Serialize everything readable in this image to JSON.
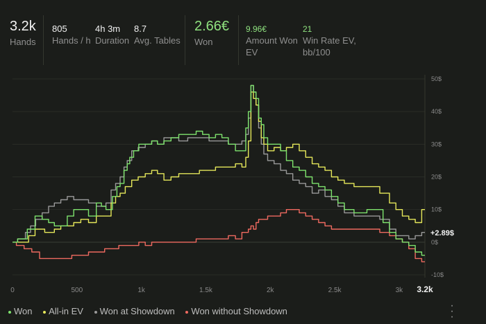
{
  "stats": {
    "hands": {
      "value": "3.2k",
      "label": "Hands"
    },
    "hands_per_hour": {
      "value": "805",
      "label": "Hands / h"
    },
    "duration": {
      "value": "4h 3m",
      "label": "Duration"
    },
    "avg_tables": {
      "value": "8.7",
      "label": "Avg. Tables"
    },
    "won": {
      "value": "2.66€",
      "label": "Won"
    },
    "amount_won_ev": {
      "value": "9.96€",
      "label_line1": "Amount Won",
      "label_line2": "EV"
    },
    "win_rate_ev": {
      "value": "21",
      "label_line1": "Win Rate EV,",
      "label_line2": "bb/100"
    }
  },
  "colors": {
    "won": "#7ee36d",
    "all_in_ev": "#e6e85a",
    "showdown": "#9a9a9a",
    "without_showdown": "#f06a60",
    "background": "#1b1d1a"
  },
  "chart_data": {
    "type": "line",
    "x_ticks": [
      "0",
      "500",
      "1k",
      "1.5k",
      "2k",
      "2.5k",
      "3k",
      "3.2k"
    ],
    "x_tick_values": [
      0,
      500,
      1000,
      1500,
      2000,
      2500,
      3000,
      3200
    ],
    "y_ticks": [
      "50$",
      "40$",
      "30$",
      "20$",
      "10$",
      "0$",
      "-10$"
    ],
    "y_tick_values": [
      50,
      40,
      30,
      20,
      10,
      0,
      -10
    ],
    "xlim": [
      0,
      3200
    ],
    "ylim": [
      -10,
      50
    ],
    "end_label": "+2.89$",
    "series": [
      {
        "name": "Won",
        "key": "won",
        "points": [
          [
            0,
            0
          ],
          [
            80,
            1
          ],
          [
            150,
            4
          ],
          [
            200,
            8
          ],
          [
            260,
            7
          ],
          [
            300,
            6
          ],
          [
            350,
            5
          ],
          [
            400,
            5
          ],
          [
            450,
            8
          ],
          [
            500,
            10
          ],
          [
            560,
            10
          ],
          [
            620,
            8
          ],
          [
            680,
            12
          ],
          [
            700,
            11
          ],
          [
            750,
            10
          ],
          [
            800,
            14
          ],
          [
            820,
            17
          ],
          [
            850,
            18
          ],
          [
            880,
            22
          ],
          [
            900,
            24
          ],
          [
            920,
            26
          ],
          [
            960,
            28
          ],
          [
            1000,
            30
          ],
          [
            1060,
            30
          ],
          [
            1100,
            31
          ],
          [
            1150,
            30
          ],
          [
            1200,
            31
          ],
          [
            1260,
            32
          ],
          [
            1320,
            33
          ],
          [
            1400,
            33
          ],
          [
            1450,
            34
          ],
          [
            1500,
            33
          ],
          [
            1550,
            32
          ],
          [
            1600,
            33
          ],
          [
            1650,
            32
          ],
          [
            1700,
            30
          ],
          [
            1760,
            28
          ],
          [
            1800,
            28
          ],
          [
            1820,
            35
          ],
          [
            1840,
            40
          ],
          [
            1860,
            48
          ],
          [
            1880,
            46
          ],
          [
            1900,
            44
          ],
          [
            1920,
            38
          ],
          [
            1940,
            36
          ],
          [
            1960,
            32
          ],
          [
            2000,
            30
          ],
          [
            2060,
            30
          ],
          [
            2100,
            28
          ],
          [
            2150,
            25
          ],
          [
            2200,
            23
          ],
          [
            2250,
            22
          ],
          [
            2300,
            20
          ],
          [
            2350,
            18
          ],
          [
            2400,
            17
          ],
          [
            2450,
            16
          ],
          [
            2500,
            14
          ],
          [
            2550,
            12
          ],
          [
            2600,
            10
          ],
          [
            2700,
            9
          ],
          [
            2800,
            10
          ],
          [
            2850,
            10
          ],
          [
            2900,
            6
          ],
          [
            2950,
            3
          ],
          [
            3000,
            1
          ],
          [
            3050,
            0
          ],
          [
            3100,
            -1
          ],
          [
            3150,
            -3
          ],
          [
            3200,
            -4
          ]
        ]
      },
      {
        "name": "All-in EV",
        "key": "all_in_ev",
        "points": [
          [
            0,
            0
          ],
          [
            100,
            0
          ],
          [
            150,
            2
          ],
          [
            200,
            4
          ],
          [
            300,
            3
          ],
          [
            350,
            4
          ],
          [
            400,
            5
          ],
          [
            450,
            5
          ],
          [
            500,
            6
          ],
          [
            560,
            7
          ],
          [
            620,
            6
          ],
          [
            680,
            8
          ],
          [
            750,
            8
          ],
          [
            780,
            12
          ],
          [
            820,
            14
          ],
          [
            850,
            15
          ],
          [
            900,
            17
          ],
          [
            950,
            19
          ],
          [
            1000,
            20
          ],
          [
            1060,
            21
          ],
          [
            1100,
            22
          ],
          [
            1150,
            21
          ],
          [
            1200,
            19
          ],
          [
            1260,
            20
          ],
          [
            1320,
            21
          ],
          [
            1400,
            21
          ],
          [
            1500,
            22
          ],
          [
            1550,
            22
          ],
          [
            1600,
            23
          ],
          [
            1650,
            23
          ],
          [
            1700,
            23
          ],
          [
            1760,
            24
          ],
          [
            1800,
            23
          ],
          [
            1820,
            26
          ],
          [
            1840,
            31
          ],
          [
            1860,
            46
          ],
          [
            1880,
            44
          ],
          [
            1900,
            42
          ],
          [
            1920,
            37
          ],
          [
            1940,
            32
          ],
          [
            1960,
            30
          ],
          [
            2000,
            28
          ],
          [
            2060,
            29
          ],
          [
            2100,
            28
          ],
          [
            2150,
            29
          ],
          [
            2200,
            30
          ],
          [
            2250,
            28
          ],
          [
            2300,
            26
          ],
          [
            2350,
            24
          ],
          [
            2400,
            23
          ],
          [
            2450,
            22
          ],
          [
            2500,
            20
          ],
          [
            2550,
            19
          ],
          [
            2600,
            18
          ],
          [
            2700,
            17
          ],
          [
            2800,
            17
          ],
          [
            2900,
            15
          ],
          [
            2950,
            12
          ],
          [
            3000,
            10
          ],
          [
            3050,
            8
          ],
          [
            3100,
            7
          ],
          [
            3150,
            6
          ],
          [
            3200,
            10
          ]
        ]
      },
      {
        "name": "Won at Showdown",
        "key": "showdown",
        "points": [
          [
            0,
            0
          ],
          [
            80,
            1
          ],
          [
            120,
            3
          ],
          [
            160,
            5
          ],
          [
            200,
            7
          ],
          [
            260,
            9
          ],
          [
            300,
            11
          ],
          [
            350,
            12
          ],
          [
            400,
            13
          ],
          [
            450,
            14
          ],
          [
            500,
            13
          ],
          [
            560,
            13
          ],
          [
            620,
            12
          ],
          [
            680,
            11
          ],
          [
            700,
            11
          ],
          [
            750,
            12
          ],
          [
            780,
            16
          ],
          [
            820,
            18
          ],
          [
            850,
            20
          ],
          [
            880,
            23
          ],
          [
            900,
            25
          ],
          [
            950,
            28
          ],
          [
            1000,
            29
          ],
          [
            1060,
            30
          ],
          [
            1100,
            31
          ],
          [
            1150,
            30
          ],
          [
            1200,
            32
          ],
          [
            1260,
            32
          ],
          [
            1320,
            31
          ],
          [
            1400,
            32
          ],
          [
            1450,
            32
          ],
          [
            1500,
            32
          ],
          [
            1550,
            31
          ],
          [
            1600,
            31
          ],
          [
            1650,
            31
          ],
          [
            1700,
            30
          ],
          [
            1760,
            30
          ],
          [
            1800,
            31
          ],
          [
            1820,
            33
          ],
          [
            1840,
            38
          ],
          [
            1860,
            48
          ],
          [
            1880,
            46
          ],
          [
            1900,
            42
          ],
          [
            1920,
            35
          ],
          [
            1940,
            30
          ],
          [
            1960,
            27
          ],
          [
            2000,
            25
          ],
          [
            2060,
            24
          ],
          [
            2100,
            22
          ],
          [
            2150,
            21
          ],
          [
            2200,
            19
          ],
          [
            2250,
            18
          ],
          [
            2300,
            17
          ],
          [
            2350,
            15
          ],
          [
            2400,
            16
          ],
          [
            2450,
            14
          ],
          [
            2500,
            13
          ],
          [
            2550,
            11
          ],
          [
            2600,
            9
          ],
          [
            2700,
            8
          ],
          [
            2800,
            8
          ],
          [
            2900,
            7
          ],
          [
            2950,
            4
          ],
          [
            3000,
            2
          ],
          [
            3050,
            2
          ],
          [
            3100,
            1
          ],
          [
            3150,
            2
          ],
          [
            3200,
            3
          ]
        ]
      },
      {
        "name": "Won without Showdown",
        "key": "without_showdown",
        "points": [
          [
            0,
            0
          ],
          [
            60,
            -1
          ],
          [
            120,
            -2
          ],
          [
            180,
            -3
          ],
          [
            240,
            -5
          ],
          [
            300,
            -5
          ],
          [
            350,
            -5
          ],
          [
            420,
            -5
          ],
          [
            500,
            -4
          ],
          [
            560,
            -4
          ],
          [
            620,
            -3
          ],
          [
            680,
            -3
          ],
          [
            750,
            -2
          ],
          [
            800,
            -2
          ],
          [
            850,
            -1
          ],
          [
            900,
            -1
          ],
          [
            960,
            -1
          ],
          [
            1000,
            0
          ],
          [
            1060,
            -1
          ],
          [
            1100,
            0
          ],
          [
            1150,
            0
          ],
          [
            1200,
            0
          ],
          [
            1260,
            0
          ],
          [
            1320,
            0
          ],
          [
            1400,
            0
          ],
          [
            1450,
            1
          ],
          [
            1500,
            1
          ],
          [
            1550,
            1
          ],
          [
            1600,
            1
          ],
          [
            1650,
            1
          ],
          [
            1700,
            2
          ],
          [
            1760,
            1
          ],
          [
            1800,
            3
          ],
          [
            1820,
            3
          ],
          [
            1840,
            4
          ],
          [
            1860,
            5
          ],
          [
            1880,
            4
          ],
          [
            1900,
            6
          ],
          [
            1920,
            7
          ],
          [
            1940,
            7
          ],
          [
            1960,
            7
          ],
          [
            2000,
            8
          ],
          [
            2060,
            8
          ],
          [
            2100,
            9
          ],
          [
            2150,
            10
          ],
          [
            2200,
            10
          ],
          [
            2250,
            9
          ],
          [
            2300,
            8
          ],
          [
            2350,
            7
          ],
          [
            2400,
            6
          ],
          [
            2450,
            5
          ],
          [
            2500,
            4
          ],
          [
            2550,
            4
          ],
          [
            2600,
            4
          ],
          [
            2700,
            4
          ],
          [
            2800,
            4
          ],
          [
            2900,
            3
          ],
          [
            2950,
            2
          ],
          [
            3000,
            1
          ],
          [
            3050,
            0
          ],
          [
            3100,
            -2
          ],
          [
            3150,
            -5
          ],
          [
            3200,
            -6
          ]
        ]
      }
    ]
  },
  "legend": [
    {
      "label": "Won",
      "key": "won"
    },
    {
      "label": "All-in EV",
      "key": "all_in_ev"
    },
    {
      "label": "Won at Showdown",
      "key": "showdown"
    },
    {
      "label": "Won without Showdown",
      "key": "without_showdown"
    }
  ],
  "menu_icon": "kebab-icon"
}
